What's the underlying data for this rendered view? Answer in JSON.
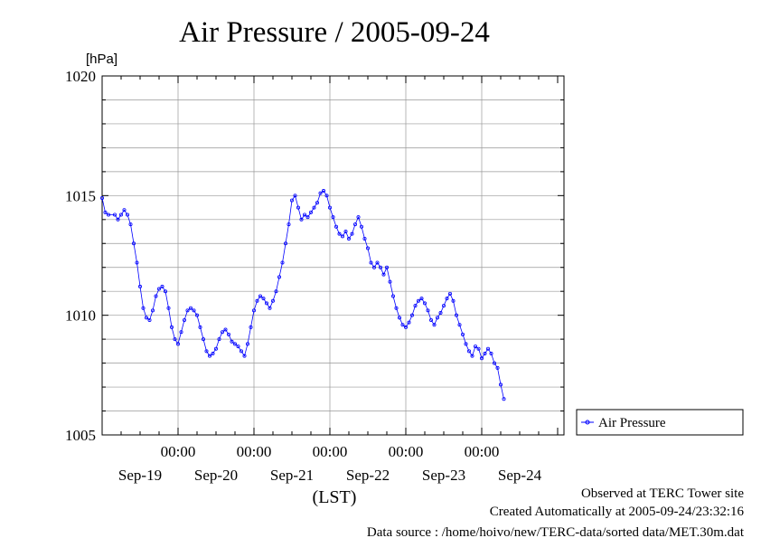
{
  "chart_data": {
    "type": "line",
    "title": "Air Pressure / 2005-09-24",
    "yunit": "[hPa]",
    "xlabel": "(LST)",
    "ylim": [
      1005,
      1020
    ],
    "y_ticks": [
      1005,
      1010,
      1015,
      1020
    ],
    "y_minor_step": 1,
    "x_range_hours": [
      0,
      146
    ],
    "x_grid_hours": [
      24,
      48,
      72,
      96,
      120
    ],
    "x_time_labels": [
      "00:00",
      "00:00",
      "00:00",
      "00:00",
      "00:00"
    ],
    "x_day_labels": [
      "Sep-19",
      "Sep-20",
      "Sep-21",
      "Sep-22",
      "Sep-23",
      "Sep-24"
    ],
    "grid": true,
    "legend_position": "right",
    "series": [
      {
        "name": "Air Pressure",
        "color": "#0000ff",
        "marker": "circle",
        "points": [
          [
            0,
            1014.9
          ],
          [
            1,
            1014.3
          ],
          [
            2,
            1014.2
          ],
          [
            4,
            1014.2
          ],
          [
            5,
            1014.0
          ],
          [
            6,
            1014.2
          ],
          [
            7,
            1014.4
          ],
          [
            8,
            1014.2
          ],
          [
            9,
            1013.8
          ],
          [
            10,
            1013.0
          ],
          [
            11,
            1012.2
          ],
          [
            12,
            1011.2
          ],
          [
            13,
            1010.3
          ],
          [
            14,
            1009.9
          ],
          [
            15,
            1009.8
          ],
          [
            16,
            1010.2
          ],
          [
            17,
            1010.8
          ],
          [
            18,
            1011.1
          ],
          [
            19,
            1011.2
          ],
          [
            20,
            1011.0
          ],
          [
            21,
            1010.3
          ],
          [
            22,
            1009.5
          ],
          [
            23,
            1009.0
          ],
          [
            24,
            1008.8
          ],
          [
            25,
            1009.3
          ],
          [
            26,
            1009.8
          ],
          [
            27,
            1010.2
          ],
          [
            28,
            1010.3
          ],
          [
            29,
            1010.2
          ],
          [
            30,
            1010.0
          ],
          [
            31,
            1009.5
          ],
          [
            32,
            1009.0
          ],
          [
            33,
            1008.5
          ],
          [
            34,
            1008.3
          ],
          [
            35,
            1008.4
          ],
          [
            36,
            1008.6
          ],
          [
            37,
            1009.0
          ],
          [
            38,
            1009.3
          ],
          [
            39,
            1009.4
          ],
          [
            40,
            1009.2
          ],
          [
            41,
            1008.9
          ],
          [
            42,
            1008.8
          ],
          [
            43,
            1008.7
          ],
          [
            44,
            1008.5
          ],
          [
            45,
            1008.3
          ],
          [
            46,
            1008.8
          ],
          [
            47,
            1009.5
          ],
          [
            48,
            1010.2
          ],
          [
            49,
            1010.6
          ],
          [
            50,
            1010.8
          ],
          [
            51,
            1010.7
          ],
          [
            52,
            1010.5
          ],
          [
            53,
            1010.3
          ],
          [
            54,
            1010.6
          ],
          [
            55,
            1011.0
          ],
          [
            56,
            1011.6
          ],
          [
            57,
            1012.2
          ],
          [
            58,
            1013.0
          ],
          [
            59,
            1013.8
          ],
          [
            60,
            1014.8
          ],
          [
            61,
            1015.0
          ],
          [
            62,
            1014.5
          ],
          [
            63,
            1014.0
          ],
          [
            64,
            1014.2
          ],
          [
            65,
            1014.1
          ],
          [
            66,
            1014.3
          ],
          [
            67,
            1014.5
          ],
          [
            68,
            1014.7
          ],
          [
            69,
            1015.1
          ],
          [
            70,
            1015.2
          ],
          [
            71,
            1015.0
          ],
          [
            72,
            1014.5
          ],
          [
            73,
            1014.1
          ],
          [
            74,
            1013.7
          ],
          [
            75,
            1013.4
          ],
          [
            76,
            1013.3
          ],
          [
            77,
            1013.5
          ],
          [
            78,
            1013.2
          ],
          [
            79,
            1013.4
          ],
          [
            80,
            1013.8
          ],
          [
            81,
            1014.1
          ],
          [
            82,
            1013.7
          ],
          [
            83,
            1013.2
          ],
          [
            84,
            1012.8
          ],
          [
            85,
            1012.2
          ],
          [
            86,
            1012.0
          ],
          [
            87,
            1012.2
          ],
          [
            88,
            1012.0
          ],
          [
            89,
            1011.7
          ],
          [
            90,
            1012.0
          ],
          [
            91,
            1011.4
          ],
          [
            92,
            1010.8
          ],
          [
            93,
            1010.3
          ],
          [
            94,
            1009.9
          ],
          [
            95,
            1009.6
          ],
          [
            96,
            1009.5
          ],
          [
            97,
            1009.7
          ],
          [
            98,
            1010.0
          ],
          [
            99,
            1010.4
          ],
          [
            100,
            1010.6
          ],
          [
            101,
            1010.7
          ],
          [
            102,
            1010.5
          ],
          [
            103,
            1010.2
          ],
          [
            104,
            1009.8
          ],
          [
            105,
            1009.6
          ],
          [
            106,
            1009.9
          ],
          [
            107,
            1010.1
          ],
          [
            108,
            1010.4
          ],
          [
            109,
            1010.7
          ],
          [
            110,
            1010.9
          ],
          [
            111,
            1010.6
          ],
          [
            112,
            1010.0
          ],
          [
            113,
            1009.6
          ],
          [
            114,
            1009.2
          ],
          [
            115,
            1008.8
          ],
          [
            116,
            1008.5
          ],
          [
            117,
            1008.3
          ],
          [
            118,
            1008.7
          ],
          [
            119,
            1008.6
          ],
          [
            120,
            1008.2
          ],
          [
            121,
            1008.4
          ],
          [
            122,
            1008.6
          ],
          [
            123,
            1008.4
          ],
          [
            124,
            1008.0
          ],
          [
            125,
            1007.8
          ],
          [
            126,
            1007.1
          ],
          [
            127,
            1006.5
          ]
        ]
      }
    ]
  },
  "footer": {
    "line1": "Observed at TERC Tower site",
    "line2": "Created Automatically at 2005-09-24/23:32:16",
    "line3": "Data source : /home/hoivo/new/TERC-data/sorted data/MET.30m.dat"
  }
}
